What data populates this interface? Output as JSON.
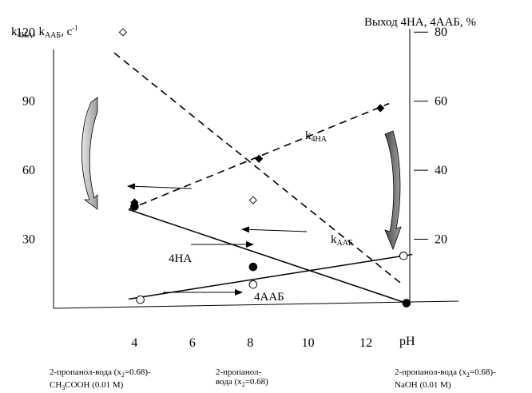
{
  "chart_data": {
    "type": "scatter",
    "title": "",
    "xlabel": "pH",
    "ylabel_left": {
      "main": "k",
      "sub1": "4НА",
      "sep": ", k",
      "sub2": "ААБ",
      "unit": ", с",
      "sup": "-1"
    },
    "ylabel_right": "Выход 4НА, 4ААБ, %",
    "x_ticks": [
      4,
      6,
      8,
      10,
      12
    ],
    "y_left_ticks": [
      30,
      60,
      90,
      120
    ],
    "y_right_ticks": [
      20,
      40,
      60,
      80
    ],
    "xlim": [
      1.2,
      15.2
    ],
    "ylim_left": [
      0,
      134
    ],
    "ylim_right": [
      0,
      89.3
    ],
    "series": [
      {
        "name": "k4НА",
        "label_main": "k",
        "label_sub": "4НА",
        "axis": "left",
        "marker": "filled-diamond",
        "style": "dashed",
        "points": [
          [
            4.0,
            46
          ],
          [
            8.3,
            65
          ],
          [
            12.5,
            87
          ]
        ],
        "fit": [
          [
            3.8,
            43
          ],
          [
            12.8,
            89
          ]
        ]
      },
      {
        "name": "kААБ",
        "label_main": "k",
        "label_sub": "ААБ",
        "axis": "left",
        "marker": "open-diamond",
        "style": "dashed",
        "points": [
          [
            3.6,
            120
          ],
          [
            8.1,
            47
          ]
        ],
        "fit": [
          [
            3.3,
            111
          ],
          [
            13.3,
            10
          ]
        ]
      },
      {
        "name": "4НА",
        "label_main": "4НА",
        "axis": "right",
        "marker": "filled-circle",
        "style": "solid",
        "points": [
          [
            4.0,
            29.5
          ],
          [
            8.1,
            12
          ],
          [
            13.4,
            1.5
          ]
        ],
        "fit": [
          [
            3.8,
            28.6
          ],
          [
            13.4,
            1.5
          ]
        ]
      },
      {
        "name": "4ААБ",
        "label_main": "4ААБ",
        "axis": "right",
        "marker": "open-circle",
        "style": "solid",
        "points": [
          [
            4.2,
            2.5
          ],
          [
            8.1,
            6.9
          ],
          [
            13.3,
            15.2
          ]
        ],
        "fit": [
          [
            3.8,
            2.7
          ],
          [
            13.6,
            15.6
          ]
        ]
      }
    ],
    "conditions": [
      {
        "line1": "2-пропанол-вода (x",
        "sub": "2",
        "line1_end": "=0.68)-",
        "line2": "CH",
        "line2_sub": "3",
        "line2_end": "COOH (0.01 M)"
      },
      {
        "line1": "2-пропанол-",
        "line2": "вода (x",
        "line2_sub": "2",
        "line2_end": "=0.68)"
      },
      {
        "line1": "2-пропанол-вода (x",
        "sub": "2",
        "line1_end": "=0.68)-",
        "line2": "NaOH (0.01 M)",
        "line2_sub": "",
        "line2_end": ""
      }
    ]
  }
}
